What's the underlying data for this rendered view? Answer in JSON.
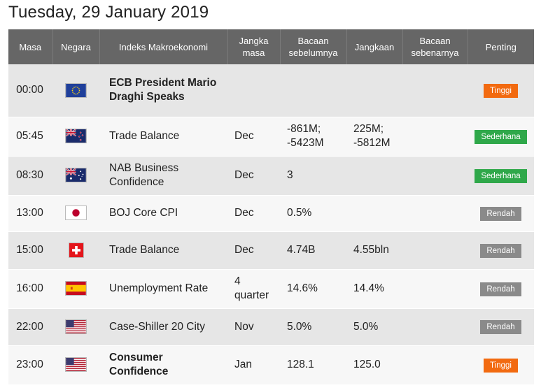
{
  "page": {
    "title": "Tuesday, 29 January 2019"
  },
  "table": {
    "headers": {
      "time": "Masa",
      "country": "Negara",
      "indicator": "Indeks Makroekonomi",
      "period": "Jangka masa",
      "previous": "Bacaan sebelumnya",
      "forecast": "Jangkaan",
      "actual": "Bacaan sebenarnya",
      "importance": "Penting"
    },
    "rows": [
      {
        "time": "00:00",
        "flag_icon": "eu-flag-icon",
        "name": "ECB President Mario Draghi Speaks",
        "bold": true,
        "period": "",
        "previous": "",
        "forecast": "",
        "actual": "",
        "importance": "Tinggi",
        "importance_color": "#f26a10"
      },
      {
        "time": "05:45",
        "flag_icon": "new-zealand-flag-icon",
        "name": "Trade Balance",
        "bold": false,
        "period": "Dec",
        "previous": "-861M; -5423M",
        "forecast": "225M; -5812M",
        "actual": "",
        "importance": "Sederhana",
        "importance_color": "#2fa84a"
      },
      {
        "time": "08:30",
        "flag_icon": "australia-flag-icon",
        "name": "NAB Business Confidence",
        "bold": false,
        "period": "Dec",
        "previous": "3",
        "forecast": "",
        "actual": "",
        "importance": "Sederhana",
        "importance_color": "#2fa84a"
      },
      {
        "time": "13:00",
        "flag_icon": "japan-flag-icon",
        "name": "BOJ Core CPI",
        "bold": false,
        "period": "Dec",
        "previous": "0.5%",
        "forecast": "",
        "actual": "",
        "importance": "Rendah",
        "importance_color": "#8a8a8a"
      },
      {
        "time": "15:00",
        "flag_icon": "switzerland-flag-icon",
        "name": "Trade Balance",
        "bold": false,
        "period": "Dec",
        "previous": "4.74B",
        "forecast": "4.55bln",
        "actual": "",
        "importance": "Rendah",
        "importance_color": "#8a8a8a"
      },
      {
        "time": "16:00",
        "flag_icon": "spain-flag-icon",
        "name": "Unemployment Rate",
        "bold": false,
        "period": "4 quarter",
        "previous": "14.6%",
        "forecast": "14.4%",
        "actual": "",
        "importance": "Rendah",
        "importance_color": "#8a8a8a"
      },
      {
        "time": "22:00",
        "flag_icon": "usa-flag-icon",
        "name": "Case-Shiller 20 City",
        "bold": false,
        "period": "Nov",
        "previous": "5.0%",
        "forecast": "5.0%",
        "actual": "",
        "importance": "Rendah",
        "importance_color": "#8a8a8a"
      },
      {
        "time": "23:00",
        "flag_icon": "usa-flag-icon",
        "name": "Consumer Confidence",
        "bold": true,
        "period": "Jan",
        "previous": "128.1",
        "forecast": "125.0",
        "actual": "",
        "importance": "Tinggi",
        "importance_color": "#f26a10"
      }
    ]
  }
}
